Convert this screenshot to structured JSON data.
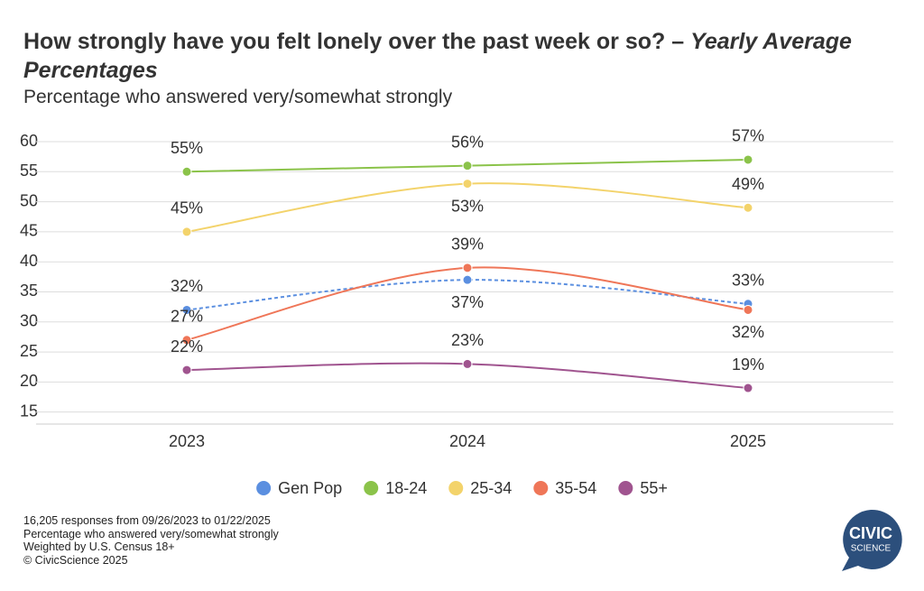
{
  "chart_data": {
    "type": "line",
    "title": "How strongly have you felt lonely over the past week or so? –",
    "title_italic": "Yearly Average Percentages",
    "subtitle": "Percentage who answered very/somewhat strongly",
    "categories": [
      "2023",
      "2024",
      "2025"
    ],
    "series": [
      {
        "name": "Gen Pop",
        "color": "#5b8fe0",
        "line_style": "dashed",
        "values": [
          32,
          37,
          33
        ],
        "value_labels": [
          "32%",
          "37%",
          "33%"
        ]
      },
      {
        "name": "18-24",
        "color": "#8bc34a",
        "line_style": "solid",
        "values": [
          55,
          56,
          57
        ],
        "value_labels": [
          "55%",
          "56%",
          "57%"
        ]
      },
      {
        "name": "25-34",
        "color": "#f3d36b",
        "line_style": "solid",
        "values": [
          45,
          53,
          49
        ],
        "value_labels": [
          "45%",
          "53%",
          "49%"
        ]
      },
      {
        "name": "35-54",
        "color": "#ef7658",
        "line_style": "solid",
        "values": [
          27,
          39,
          32
        ],
        "value_labels": [
          "27%",
          "39%",
          "32%"
        ]
      },
      {
        "name": "55+",
        "color": "#a0548f",
        "line_style": "solid",
        "values": [
          22,
          23,
          19
        ],
        "value_labels": [
          "22%",
          "23%",
          "19%"
        ]
      }
    ],
    "ylim": [
      13,
      60
    ],
    "yticks": [
      15,
      20,
      25,
      30,
      35,
      40,
      45,
      50,
      55,
      60
    ],
    "grid": true,
    "legend": "bottom",
    "notes": [
      "16,205 responses from 09/26/2023 to 01/22/2025",
      "Percentage who answered very/somewhat strongly",
      "Weighted by U.S. Census 18+",
      "© CivicScience 2025"
    ],
    "logo": [
      "CIVIC",
      "SCIENCE"
    ]
  }
}
